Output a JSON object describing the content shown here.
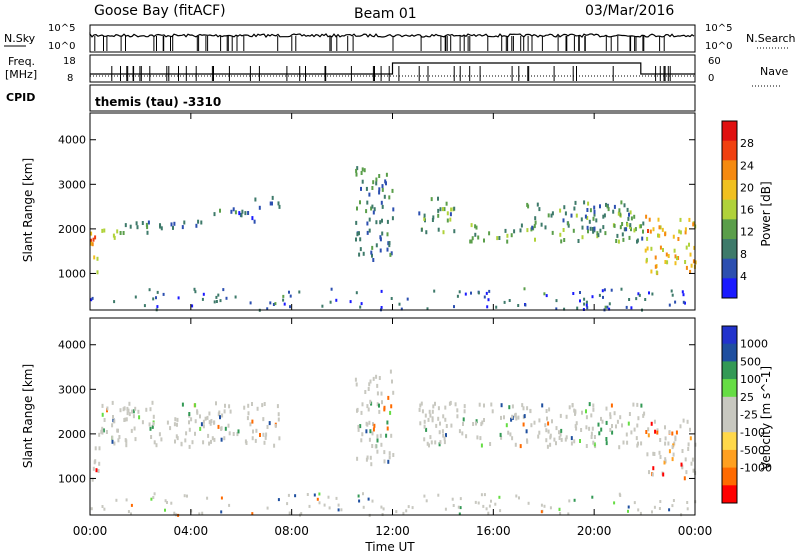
{
  "header": {
    "station": "Goose Bay (fitACF)",
    "beam": "Beam 01",
    "date": "03/Mar/2016"
  },
  "nsky_panel": {
    "label": "N.Sky",
    "right_label": "N.Search",
    "tick_high": "10^5",
    "tick_low": "10^0"
  },
  "freq_panel": {
    "label_line1": "Freq.",
    "label_line2": "[MHz]",
    "tick_high": "18",
    "tick_low": "8",
    "right_tick_high": "60",
    "right_tick_low": "0",
    "right_label": "Nave"
  },
  "cpid": {
    "label": "CPID",
    "value": "themis (tau) -3310"
  },
  "time_axis": {
    "title": "Time UT",
    "ticks": [
      "00:00",
      "04:00",
      "08:00",
      "12:00",
      "16:00",
      "20:00",
      "00:00"
    ]
  },
  "colors": {
    "power_scale": [
      "#1a1aff",
      "#2c4fb0",
      "#3e7a6a",
      "#5a9e4a",
      "#b0d23a",
      "#f0c020",
      "#f58a10",
      "#f04010",
      "#e01010"
    ],
    "velocity_scale": [
      "#ff0000",
      "#ff6a00",
      "#ffa020",
      "#ffd84a",
      "#c8c8c0",
      "#c8c8c0",
      "#66dd44",
      "#339955",
      "#1f4f9f",
      "#2233cc"
    ]
  },
  "chart_data": [
    {
      "type": "heatmap",
      "title": "Power",
      "ylabel": "Slant Range [km]",
      "xlim": [
        0,
        24
      ],
      "ylim": [
        180,
        4600
      ],
      "yticks": [
        "1000",
        "2000",
        "3000",
        "4000"
      ],
      "colorbar": {
        "label": "Power [dB]",
        "min": 0,
        "max": 32,
        "ticks": [
          "4",
          "8",
          "12",
          "16",
          "20",
          "24",
          "28"
        ]
      },
      "x": [
        "00:00",
        "04:00",
        "08:00",
        "12:00",
        "16:00",
        "20:00",
        "00:00"
      ],
      "regions": [
        {
          "t0": 0.0,
          "t1": 0.4,
          "r0": 900,
          "r1": 1900,
          "power": 22
        },
        {
          "t0": 0.3,
          "t1": 1.2,
          "r0": 1700,
          "r1": 2000,
          "power": 14
        },
        {
          "t0": 1.0,
          "t1": 2.5,
          "r0": 1900,
          "r1": 2200,
          "power": 10
        },
        {
          "t0": 2.5,
          "t1": 4.5,
          "r0": 2000,
          "r1": 2250,
          "power": 9
        },
        {
          "t0": 4.5,
          "t1": 6.5,
          "r0": 2150,
          "r1": 2450,
          "power": 8
        },
        {
          "t0": 6.5,
          "t1": 7.5,
          "r0": 2400,
          "r1": 2700,
          "power": 7
        },
        {
          "t0": 10.5,
          "t1": 12.0,
          "r0": 1300,
          "r1": 3400,
          "power": 9
        },
        {
          "t0": 13.0,
          "t1": 14.5,
          "r0": 1900,
          "r1": 2700,
          "power": 12
        },
        {
          "t0": 15.0,
          "t1": 22.0,
          "r0": 1700,
          "r1": 2100,
          "power": 12
        },
        {
          "t0": 17.0,
          "t1": 22.0,
          "r0": 2000,
          "r1": 2600,
          "power": 10
        },
        {
          "t0": 22.0,
          "t1": 24.0,
          "r0": 1000,
          "r1": 2300,
          "power": 20
        }
      ]
    },
    {
      "type": "heatmap",
      "title": "Velocity",
      "ylabel": "Slant Range [km]",
      "xlim": [
        0,
        24
      ],
      "ylim": [
        180,
        4600
      ],
      "yticks": [
        "1000",
        "2000",
        "3000",
        "4000"
      ],
      "colorbar": {
        "label": "Velocity [m s^-1]",
        "ticks": [
          "1000",
          "500",
          "100",
          "25",
          "-25",
          "-100",
          "-500",
          "-1000"
        ]
      },
      "x": [
        "00:00",
        "04:00",
        "08:00",
        "12:00",
        "16:00",
        "20:00",
        "00:00"
      ],
      "regions": [
        {
          "t0": 0.0,
          "t1": 0.4,
          "r0": 900,
          "r1": 1900,
          "velocity": -300
        },
        {
          "t0": 0.3,
          "t1": 7.5,
          "r0": 1700,
          "r1": 2700,
          "velocity": 0
        },
        {
          "t0": 10.5,
          "t1": 12.0,
          "r0": 1300,
          "r1": 3400,
          "velocity": 20
        },
        {
          "t0": 13.0,
          "t1": 22.0,
          "r0": 1700,
          "r1": 2700,
          "velocity": 0
        },
        {
          "t0": 22.0,
          "t1": 24.0,
          "r0": 1000,
          "r1": 2300,
          "velocity": -200
        }
      ]
    }
  ]
}
